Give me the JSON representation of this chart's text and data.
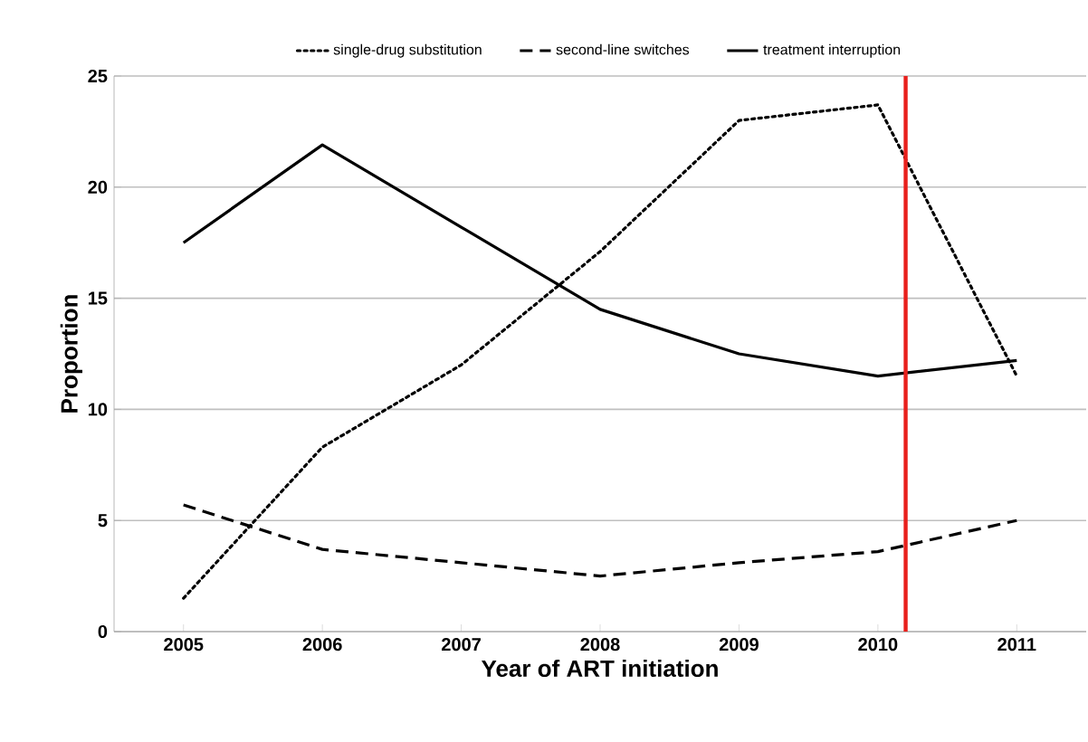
{
  "chart_data": {
    "type": "line",
    "xlabel": "Year of ART initiation",
    "ylabel": "Proportion",
    "x": [
      2005,
      2006,
      2007,
      2008,
      2009,
      2010,
      2011
    ],
    "xlim": [
      2004.5,
      2011.5
    ],
    "xticks": [
      2005,
      2006,
      2007,
      2008,
      2009,
      2010,
      2011
    ],
    "ylim": [
      0,
      25
    ],
    "yticks": [
      0,
      5,
      10,
      15,
      20,
      25
    ],
    "grid": "y",
    "legend": "top",
    "series": [
      {
        "name": "single-drug substitution",
        "color": "#000000",
        "line_style": "dotted",
        "values": [
          1.5,
          8.3,
          12.0,
          17.1,
          23.0,
          23.7,
          11.5
        ]
      },
      {
        "name": "second-line switches",
        "color": "#000000",
        "line_style": "dashed",
        "values": [
          5.7,
          3.7,
          3.1,
          2.5,
          3.1,
          3.6,
          5.0
        ]
      },
      {
        "name": "treatment interruption",
        "color": "#000000",
        "line_style": "solid",
        "values": [
          17.5,
          21.9,
          18.2,
          14.5,
          12.5,
          11.5,
          12.2
        ]
      }
    ],
    "ref_lines": [
      {
        "axis": "x",
        "value": 2010.2,
        "color": "#e8201c",
        "line_style": "solid"
      }
    ]
  }
}
